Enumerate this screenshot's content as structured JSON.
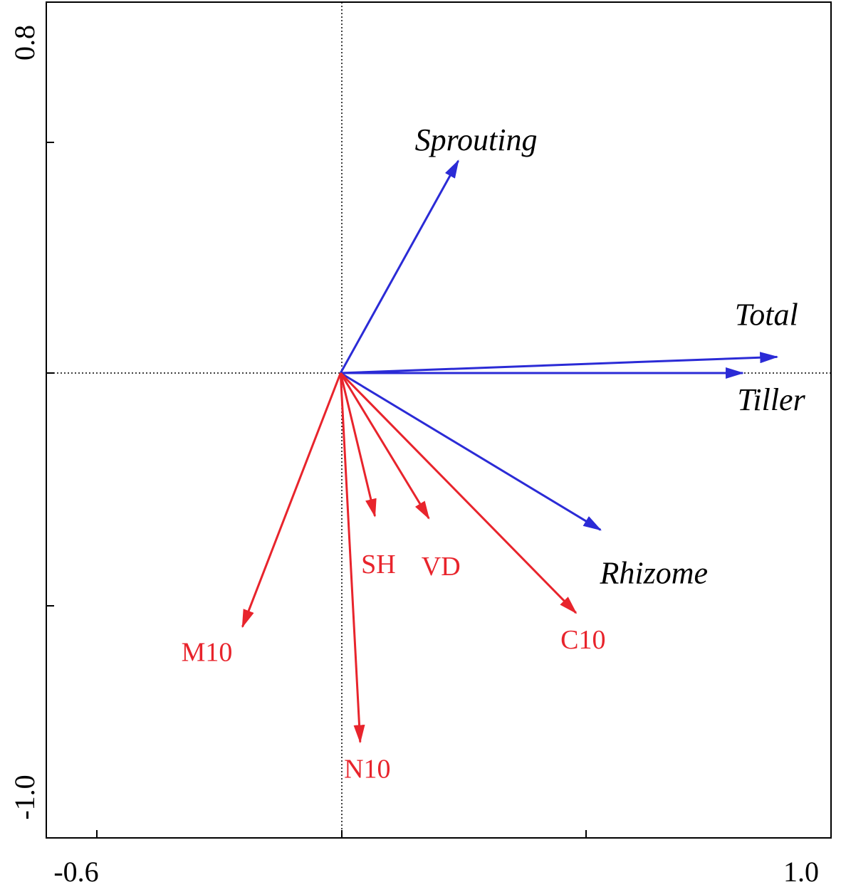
{
  "chart_data": {
    "type": "biplot",
    "x_tick_labels": [
      "-0.6",
      "1.0"
    ],
    "y_tick_labels": [
      "0.8",
      "-1.0"
    ],
    "xlim": [
      -0.6,
      1.0
    ],
    "ylim": [
      -1.0,
      0.8
    ],
    "origin_lines": {
      "style": "dotted",
      "color": "#000000"
    },
    "series": [
      {
        "group": "response",
        "color": "#2b2bd6",
        "label_style": "italic",
        "vectors": [
          {
            "label": "Sprouting",
            "x": 0.24,
            "y": 0.46
          },
          {
            "label": "Total",
            "x": 0.89,
            "y": 0.035
          },
          {
            "label": "Tiller",
            "x": 0.82,
            "y": 0.0
          },
          {
            "label": "Rhizome",
            "x": 0.53,
            "y": -0.34
          }
        ]
      },
      {
        "group": "explanatory",
        "color": "#e8242c",
        "label_style": "normal",
        "vectors": [
          {
            "label": "SH",
            "x": 0.07,
            "y": -0.31
          },
          {
            "label": "VD",
            "x": 0.18,
            "y": -0.315
          },
          {
            "label": "C10",
            "x": 0.48,
            "y": -0.52
          },
          {
            "label": "M10",
            "x": -0.2,
            "y": -0.55
          },
          {
            "label": "N10",
            "x": 0.04,
            "y": -0.8
          }
        ]
      }
    ]
  }
}
